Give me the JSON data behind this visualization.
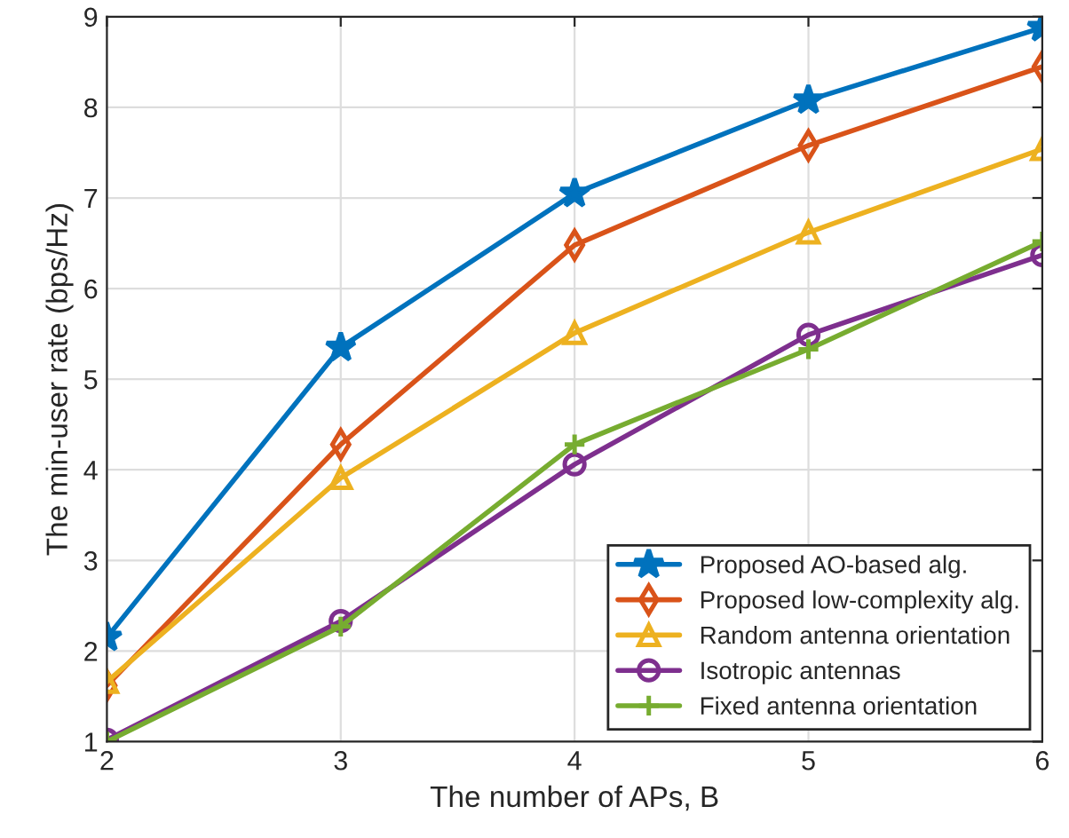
{
  "chart_data": {
    "type": "line",
    "xlabel": "The number of APs, B",
    "ylabel": "The min-user rate (bps/Hz)",
    "x": [
      2,
      3,
      4,
      5,
      6
    ],
    "xlim": [
      2,
      6
    ],
    "xticks": [
      2,
      3,
      4,
      5,
      6
    ],
    "ylim": [
      1,
      9
    ],
    "yticks": [
      1,
      2,
      3,
      4,
      5,
      6,
      7,
      8,
      9
    ],
    "grid": true,
    "legend": "bottom right",
    "line_style": "solid",
    "series": [
      {
        "name": "Proposed AO-based alg.",
        "color": "#0072bd",
        "marker": "star",
        "values": [
          2.15,
          5.35,
          7.05,
          8.08,
          8.88
        ]
      },
      {
        "name": "Proposed low-complexity alg.",
        "color": "#d95319",
        "marker": "diamond",
        "values": [
          1.62,
          4.28,
          6.48,
          7.58,
          8.45
        ]
      },
      {
        "name": "Random antenna orientation",
        "color": "#edb120",
        "marker": "triangle",
        "values": [
          1.66,
          3.91,
          5.51,
          6.62,
          7.54
        ]
      },
      {
        "name": "Isotropic antennas",
        "color": "#7e2f8e",
        "marker": "circle",
        "values": [
          1.02,
          2.33,
          4.06,
          5.49,
          6.37
        ]
      },
      {
        "name": "Fixed antenna orientation",
        "color": "#77ac30",
        "marker": "cross",
        "values": [
          1.0,
          2.27,
          4.28,
          5.33,
          6.52
        ]
      }
    ]
  }
}
